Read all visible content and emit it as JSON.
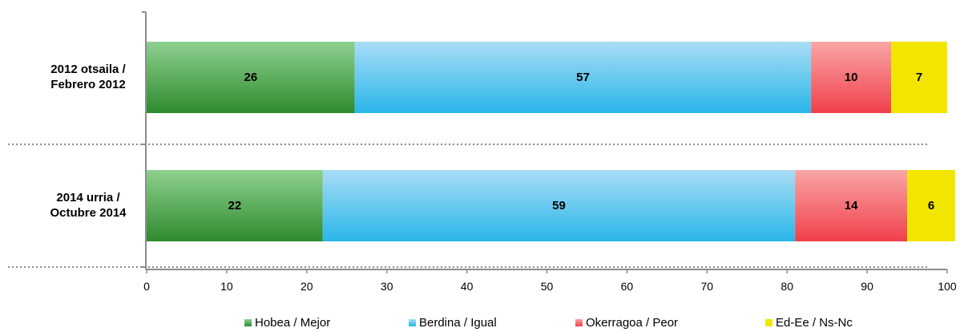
{
  "chart_data": {
    "type": "bar",
    "orientation": "horizontal",
    "stacked": true,
    "categories": [
      "2012 otsaila / Febrero 2012",
      "2014 urria / Octubre 2014"
    ],
    "category_lines": [
      [
        "2012 otsaila /",
        "Febrero 2012"
      ],
      [
        "2014 urria /",
        "Octubre 2014"
      ]
    ],
    "series": [
      {
        "name": "Hobea / Mejor",
        "values": [
          26,
          22
        ],
        "color": "#2e8b2e",
        "color_light": "#8fd08f"
      },
      {
        "name": "Berdina / Igual",
        "values": [
          57,
          59
        ],
        "color": "#29b6ea",
        "color_light": "#a9ddf5"
      },
      {
        "name": "Okerragoa / Peor",
        "values": [
          10,
          14
        ],
        "color": "#f0404a",
        "color_light": "#f9a6a6"
      },
      {
        "name": "Ed-Ee / Ns-Nc",
        "values": [
          7,
          6
        ],
        "color": "#f2e600",
        "color_light": "#f2e600"
      }
    ],
    "xlim": [
      0,
      100
    ],
    "xticks": [
      "0",
      "10",
      "20",
      "30",
      "40",
      "50",
      "60",
      "70",
      "80",
      "90",
      "100"
    ],
    "grid": false,
    "legend_position": "bottom",
    "title": "",
    "xlabel": "",
    "ylabel": ""
  }
}
